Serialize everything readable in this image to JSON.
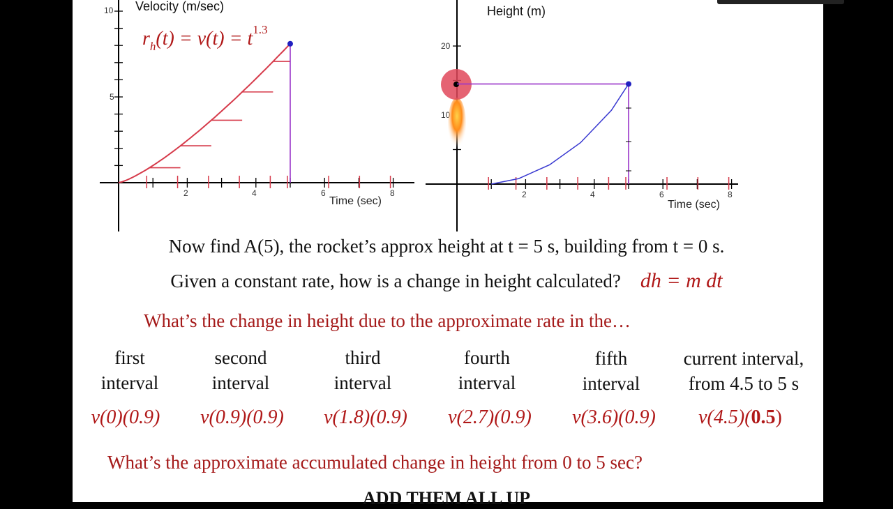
{
  "left_graph": {
    "ylabel": "Velocity (m/sec)",
    "xlabel": "Time (sec)",
    "yticks": [
      "10",
      "5"
    ],
    "xticks": [
      "2",
      "4",
      "6",
      "8"
    ],
    "formula": "r_h(t) = v(t) = t^1.3",
    "formula_pre": "r",
    "formula_sub": "h",
    "formula_mid": "(t) = v(t) = t",
    "formula_sup": "1.3"
  },
  "right_graph": {
    "ylabel": "Height (m)",
    "xlabel": "Time (sec)",
    "yticks": [
      "20",
      "10"
    ],
    "xticks": [
      "2",
      "4",
      "6",
      "8"
    ]
  },
  "chart_data": [
    {
      "type": "line",
      "title": "",
      "ylabel": "Velocity (m/sec)",
      "xlabel": "Time (sec)",
      "xlim": [
        0,
        8
      ],
      "ylim": [
        0,
        10
      ],
      "series": [
        {
          "x": [
            0,
            0.9,
            1.8,
            2.7,
            3.6,
            4.5,
            5.0
          ],
          "y": [
            0,
            0.87,
            2.15,
            3.64,
            5.29,
            7.07,
            8.1
          ]
        }
      ],
      "step_heights": [
        {
          "x_start": 0.9,
          "x_end": 1.8,
          "y": 0.87
        },
        {
          "x_start": 1.8,
          "x_end": 2.7,
          "y": 2.15
        },
        {
          "x_start": 2.7,
          "x_end": 3.6,
          "y": 3.64
        },
        {
          "x_start": 3.6,
          "x_end": 4.5,
          "y": 5.29
        },
        {
          "x_start": 4.5,
          "x_end": 5.0,
          "y": 7.07
        }
      ],
      "marker": {
        "x": 5.0,
        "y": 8.1
      }
    },
    {
      "type": "line",
      "title": "",
      "ylabel": "Height (m)",
      "xlabel": "Time (sec)",
      "xlim": [
        0,
        8
      ],
      "ylim": [
        0,
        20
      ],
      "series": [
        {
          "x": [
            1.0,
            1.8,
            2.7,
            3.6,
            4.5,
            5.0
          ],
          "y": [
            0,
            0.8,
            2.8,
            6.0,
            10.7,
            14.5
          ]
        }
      ],
      "marker": {
        "x": 5.0,
        "y": 14.5
      }
    }
  ],
  "text": {
    "q1": "Now find A(5), the rocket’s approx height at t = 5 s, building from t = 0 s.",
    "q2": "Given a constant rate, how is a change in height calculated?",
    "q2_answer": "dh = m dt",
    "q3": "What’s the change in height due to the approximate rate in the…",
    "q4": "What’s the approximate accumulated change in height from 0 to 5 sec?",
    "q5": "ADD THEM ALL UP"
  },
  "intervals": [
    {
      "line1": "first",
      "line2": "interval",
      "expr": "v(0)(0.9)"
    },
    {
      "line1": "second",
      "line2": "interval",
      "expr": "v(0.9)(0.9)"
    },
    {
      "line1": "third",
      "line2": "interval",
      "expr": "v(1.8)(0.9)"
    },
    {
      "line1": "fourth",
      "line2": "interval",
      "expr": "v(2.7)(0.9)"
    },
    {
      "line1": "fifth",
      "line2": "interval",
      "expr": "v(3.6)(0.9)"
    },
    {
      "line1": "current interval,",
      "line2": "from 4.5 to 5 s",
      "expr_pre": "v(4.5)(",
      "expr_bold": "0.5",
      "expr_post": ")"
    }
  ],
  "colors": {
    "red": "#d63a4a",
    "purple": "#9a35c9",
    "blue": "#2f2fcf",
    "text_red": "#a51a1a"
  }
}
